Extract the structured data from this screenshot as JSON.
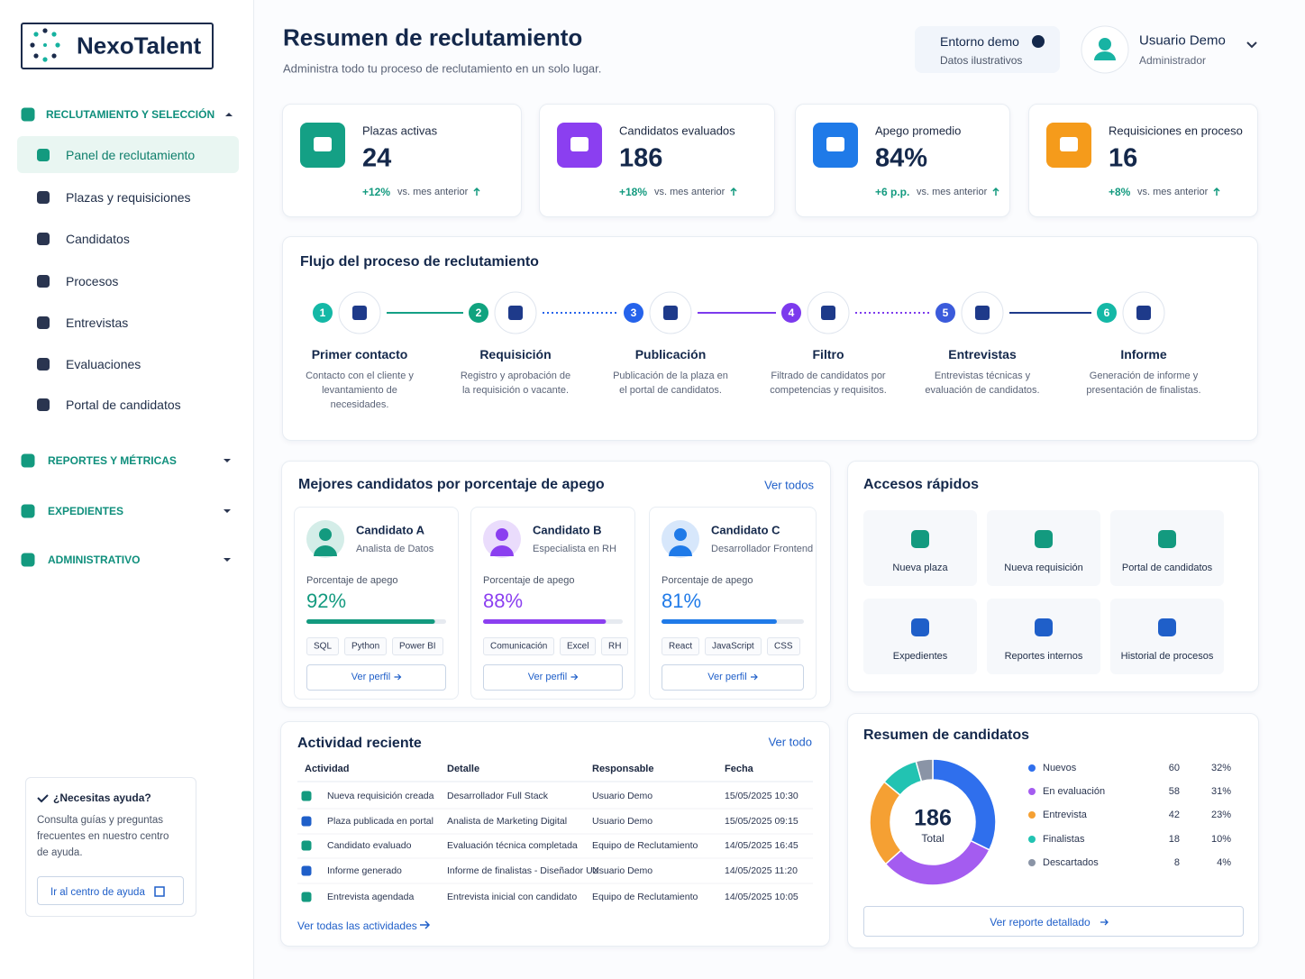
{
  "sidebar": {
    "brand": "NexoTalent",
    "sections": [
      {
        "title": "RECLUTAMIENTO Y SELECCIÓN",
        "items": [
          "Panel de reclutamiento",
          "Plazas y requisiciones",
          "Candidatos",
          "Procesos",
          "Entrevistas",
          "Evaluaciones",
          "Portal de candidatos"
        ]
      },
      {
        "title": "REPORTES Y MÉTRICAS"
      },
      {
        "title": "EXPEDIENTES"
      },
      {
        "title": "ADMINISTRATIVO"
      }
    ],
    "help": {
      "title": "¿Necesitas ayuda?",
      "text": "Consulta guías y preguntas frecuentes en nuestro centro de ayuda.",
      "button": "Ir al centro de ayuda"
    }
  },
  "header": {
    "title": "Resumen de reclutamiento",
    "subtitle": "Administra todo tu proceso de reclutamiento en un solo lugar.",
    "env": {
      "title": "Entorno demo",
      "subtitle": "Datos ilustrativos"
    },
    "user": {
      "name": "Usuario Demo",
      "role": "Administrador"
    }
  },
  "kpis": [
    {
      "label": "Plazas activas",
      "value": "24",
      "change": "+12%",
      "note": "vs. mes anterior"
    },
    {
      "label": "Candidatos evaluados",
      "value": "186",
      "change": "+18%",
      "note": "vs. mes anterior"
    },
    {
      "label": "Apego promedio",
      "value": "84%",
      "change": "+6 p.p.",
      "note": "vs. mes anterior"
    },
    {
      "label": "Requisiciones en proceso",
      "value": "16",
      "change": "+8%",
      "note": "vs. mes anterior"
    }
  ],
  "flow": {
    "title": "Flujo del proceso de reclutamiento",
    "steps": [
      {
        "number": "1",
        "title": "Primer contacto",
        "text": "Contacto con el cliente y levantamiento de necesidades."
      },
      {
        "number": "2",
        "title": "Requisición",
        "text": "Registro y aprobación de la requisición o vacante."
      },
      {
        "number": "3",
        "title": "Publicación",
        "text": "Publicación de la plaza en el portal de candidatos."
      },
      {
        "number": "4",
        "title": "Filtro",
        "text": "Filtrado de candidatos por competencias y requisitos."
      },
      {
        "number": "5",
        "title": "Entrevistas",
        "text": "Entrevistas técnicas y evaluación de candidatos."
      },
      {
        "number": "6",
        "title": "Informe",
        "text": "Generación de informe y presentación de finalistas."
      }
    ]
  },
  "top_candidates": {
    "title": "Mejores candidatos por porcentaje de apego",
    "link": "Ver todos",
    "fit_caption": "Porcentaje de apego",
    "button": "Ver perfil",
    "candidates": [
      {
        "name": "Candidato A",
        "role": "Analista de Datos",
        "fit": 92,
        "fit_label": "92%",
        "color": "#139a7f",
        "skills": [
          "SQL",
          "Python",
          "Power BI"
        ]
      },
      {
        "name": "Candidato B",
        "role": "Especialista en RH",
        "fit": 88,
        "fit_label": "88%",
        "color": "#8b3ff0",
        "skills": [
          "Comunicación",
          "Excel",
          "RH"
        ]
      },
      {
        "name": "Candidato C",
        "role": "Desarrollador Frontend",
        "fit": 81,
        "fit_label": "81%",
        "color": "#1f7ae8",
        "skills": [
          "React",
          "JavaScript",
          "CSS"
        ]
      }
    ]
  },
  "quick_access": {
    "title": "Accesos rápidos",
    "items": [
      "Nueva plaza",
      "Nueva requisición",
      "Portal de candidatos",
      "Expedientes",
      "Reportes internos",
      "Historial de procesos"
    ]
  },
  "activity": {
    "title": "Actividad reciente",
    "link": "Ver todo",
    "columns": [
      "Actividad",
      "Detalle",
      "Responsable",
      "Fecha"
    ],
    "rows": [
      [
        "Nueva requisición creada",
        "Desarrollador Full Stack",
        "Usuario Demo",
        "15/05/2025 10:30"
      ],
      [
        "Plaza publicada en portal",
        "Analista de Marketing Digital",
        "Usuario Demo",
        "15/05/2025 09:15"
      ],
      [
        "Candidato evaluado",
        "Evaluación técnica completada",
        "Equipo de Reclutamiento",
        "14/05/2025 16:45"
      ],
      [
        "Informe generado",
        "Informe de finalistas - Diseñador UX",
        "Usuario Demo",
        "14/05/2025 11:20"
      ],
      [
        "Entrevista agendada",
        "Entrevista inicial con candidato",
        "Equipo de Reclutamiento",
        "14/05/2025 10:05"
      ]
    ],
    "footer_link": "Ver todas las actividades"
  },
  "candidate_summary": {
    "title": "Resumen de candidatos",
    "total": "186",
    "total_label": "Total",
    "rows": [
      {
        "name": "Nuevos",
        "count": 60,
        "percent": "32%",
        "color": "#2f6fed"
      },
      {
        "name": "En evaluación",
        "count": 58,
        "percent": "31%",
        "color": "#a45cf0"
      },
      {
        "name": "Entrevista",
        "count": 42,
        "percent": "23%",
        "color": "#f5a033"
      },
      {
        "name": "Finalistas",
        "count": 18,
        "percent": "10%",
        "color": "#22c3b2"
      },
      {
        "name": "Descartados",
        "count": 8,
        "percent": "4%",
        "color": "#8a94a6"
      }
    ],
    "button": "Ver reporte detallado"
  }
}
